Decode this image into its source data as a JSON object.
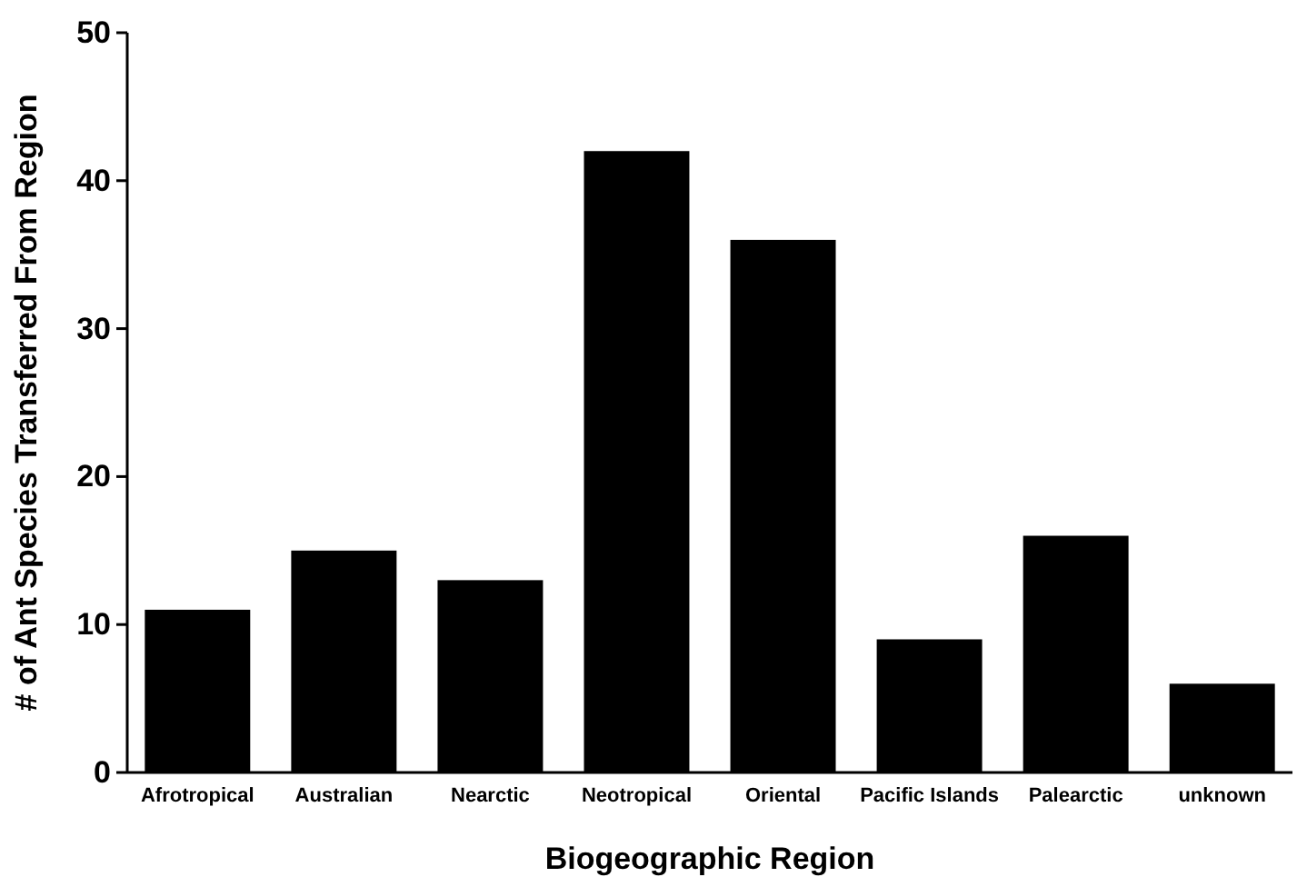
{
  "chart_data": {
    "type": "bar",
    "xlabel": "Biogeographic Region",
    "ylabel": "# of Ant Species Transferred From Region",
    "categories": [
      "Afrotropical",
      "Australian",
      "Nearctic",
      "Neotropical",
      "Oriental",
      "Pacific Islands",
      "Palearctic",
      "unknown"
    ],
    "values": [
      11,
      15,
      13,
      42,
      36,
      9,
      16,
      6
    ],
    "color": "#000000",
    "ylim": [
      0,
      50
    ],
    "yticks": [
      0,
      10,
      20,
      30,
      40,
      50
    ]
  }
}
